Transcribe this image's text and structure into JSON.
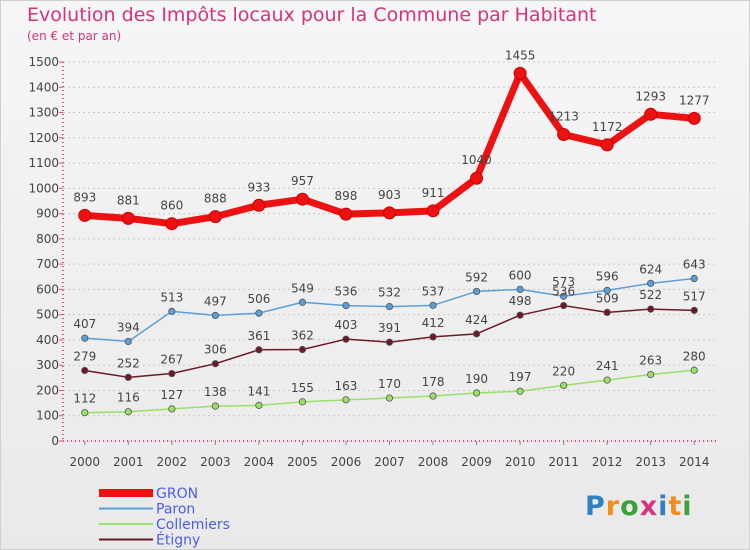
{
  "title": "Evolution des Impôts locaux pour la Commune par Habitant",
  "subtitle": "(en € et par an)",
  "logo": [
    "P",
    "r",
    "o",
    "x",
    "i",
    "t",
    "i"
  ],
  "chart_data": {
    "type": "line",
    "x": [
      "2000",
      "2001",
      "2002",
      "2003",
      "2004",
      "2005",
      "2006",
      "2007",
      "2008",
      "2009",
      "2010",
      "2011",
      "2012",
      "2013",
      "2014"
    ],
    "ylim": [
      0,
      1500
    ],
    "yticks": [
      0,
      100,
      200,
      300,
      400,
      500,
      600,
      700,
      800,
      900,
      1000,
      1100,
      1200,
      1300,
      1400,
      1500
    ],
    "grid": "horizontal dashed",
    "legend_position": "bottom-left",
    "series": [
      {
        "name": "GRON",
        "color": "#ee1111",
        "values": [
          893,
          881,
          860,
          888,
          933,
          957,
          898,
          903,
          911,
          1040,
          1455,
          1213,
          1172,
          1293,
          1277
        ]
      },
      {
        "name": "Paron",
        "color": "#5c9fd8",
        "values": [
          407,
          394,
          513,
          497,
          506,
          549,
          536,
          532,
          537,
          592,
          600,
          573,
          596,
          624,
          643
        ]
      },
      {
        "name": "Collemiers",
        "color": "#99e066",
        "values": [
          112,
          116,
          127,
          138,
          141,
          155,
          163,
          170,
          178,
          190,
          197,
          220,
          241,
          263,
          280
        ]
      },
      {
        "name": "Étigny",
        "color": "#6b1a25",
        "values": [
          279,
          252,
          267,
          306,
          361,
          362,
          403,
          391,
          412,
          424,
          498,
          536,
          509,
          522,
          517
        ]
      }
    ]
  }
}
